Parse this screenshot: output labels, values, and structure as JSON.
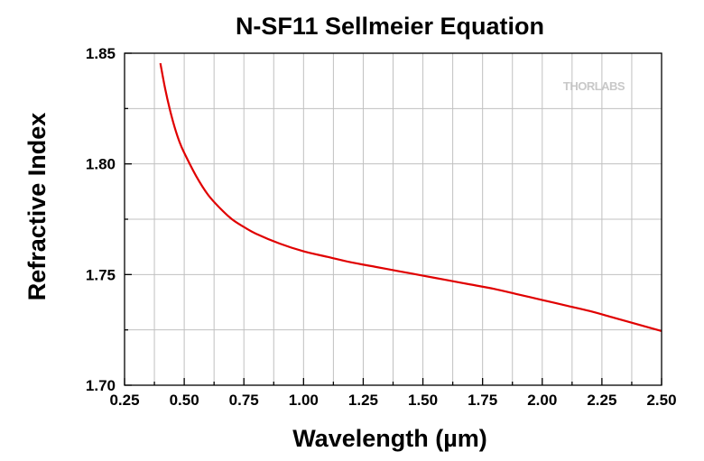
{
  "chart_data": {
    "type": "line",
    "title": "N-SF11 Sellmeier Equation",
    "xlabel": "Wavelength (µm)",
    "ylabel": "Refractive Index",
    "xlim": [
      0.25,
      2.5
    ],
    "ylim": [
      1.7,
      1.85
    ],
    "xticks": [
      "0.25",
      "0.50",
      "0.75",
      "1.00",
      "1.25",
      "1.50",
      "1.75",
      "2.00",
      "2.25",
      "2.50"
    ],
    "yticks": [
      "1.70",
      "1.75",
      "1.80",
      "1.85"
    ],
    "grid": true,
    "watermark": "THORLABS",
    "series": [
      {
        "name": "N-SF11",
        "color": "#e00000",
        "x": [
          0.4,
          0.42,
          0.44,
          0.46,
          0.48,
          0.5,
          0.55,
          0.6,
          0.65,
          0.7,
          0.75,
          0.8,
          0.9,
          1.0,
          1.1,
          1.2,
          1.3,
          1.4,
          1.5,
          1.6,
          1.7,
          1.8,
          1.9,
          2.0,
          2.1,
          2.2,
          2.3,
          2.4,
          2.5
        ],
        "y": [
          1.8455,
          1.834,
          1.8245,
          1.8165,
          1.81,
          1.805,
          1.7945,
          1.786,
          1.78,
          1.775,
          1.7715,
          1.7685,
          1.764,
          1.7605,
          1.758,
          1.7555,
          1.7535,
          1.7515,
          1.7495,
          1.7475,
          1.7455,
          1.7435,
          1.741,
          1.7385,
          1.736,
          1.7335,
          1.7305,
          1.7275,
          1.7245
        ]
      }
    ]
  }
}
